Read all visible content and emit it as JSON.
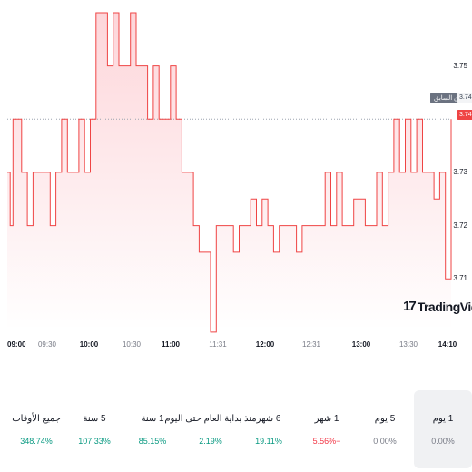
{
  "chart_data": {
    "type": "area",
    "x_ticks": [
      {
        "label": "09:00",
        "major": true
      },
      {
        "label": "09:30",
        "major": false
      },
      {
        "label": "10:00",
        "major": true
      },
      {
        "label": "10:30",
        "major": false
      },
      {
        "label": "11:00",
        "major": true
      },
      {
        "label": "11:31",
        "major": false
      },
      {
        "label": "12:00",
        "major": true
      },
      {
        "label": "12:31",
        "major": false
      },
      {
        "label": "13:00",
        "major": true
      },
      {
        "label": "13:30",
        "major": false
      },
      {
        "label": "14:10",
        "major": true
      }
    ],
    "y_ticks": [
      "3.75",
      "3.73",
      "3.72",
      "3.71"
    ],
    "ylim": [
      3.7,
      3.76
    ],
    "previous_close": 3.74,
    "previous_close_label": "الإغلاق السابق",
    "previous_close_value": "3.74",
    "last_price": "3.74",
    "x": [
      "09:00",
      "09:02",
      "09:04",
      "09:06",
      "09:10",
      "09:14",
      "09:18",
      "09:22",
      "09:26",
      "09:30",
      "09:34",
      "09:38",
      "09:42",
      "09:46",
      "09:50",
      "09:54",
      "09:58",
      "10:02",
      "10:06",
      "10:10",
      "10:14",
      "10:18",
      "10:22",
      "10:26",
      "10:30",
      "10:34",
      "10:38",
      "10:42",
      "10:46",
      "10:50",
      "10:54",
      "10:58",
      "11:02",
      "11:06",
      "11:10",
      "11:14",
      "11:18",
      "11:22",
      "11:26",
      "11:30",
      "11:34",
      "11:38",
      "11:42",
      "11:46",
      "11:50",
      "11:54",
      "11:58",
      "12:02",
      "12:06",
      "12:10",
      "12:14",
      "12:18",
      "12:22",
      "12:26",
      "12:30",
      "12:34",
      "12:38",
      "12:42",
      "12:46",
      "12:50",
      "12:54",
      "12:58",
      "13:02",
      "13:06",
      "13:10",
      "13:14",
      "13:18",
      "13:22",
      "13:26",
      "13:30",
      "13:34",
      "13:38",
      "13:42",
      "13:46",
      "13:50",
      "13:54",
      "13:58",
      "14:02",
      "14:06",
      "14:10"
    ],
    "values": [
      3.73,
      3.72,
      3.74,
      3.74,
      3.73,
      3.72,
      3.73,
      3.73,
      3.73,
      3.72,
      3.73,
      3.74,
      3.73,
      3.73,
      3.74,
      3.73,
      3.74,
      3.76,
      3.76,
      3.75,
      3.76,
      3.75,
      3.75,
      3.76,
      3.75,
      3.75,
      3.74,
      3.75,
      3.74,
      3.74,
      3.75,
      3.74,
      3.73,
      3.73,
      3.72,
      3.715,
      3.715,
      3.7,
      3.72,
      3.72,
      3.72,
      3.715,
      3.72,
      3.72,
      3.725,
      3.72,
      3.725,
      3.72,
      3.715,
      3.72,
      3.72,
      3.72,
      3.715,
      3.72,
      3.72,
      3.72,
      3.72,
      3.73,
      3.72,
      3.73,
      3.72,
      3.72,
      3.725,
      3.725,
      3.72,
      3.72,
      3.73,
      3.72,
      3.73,
      3.74,
      3.73,
      3.74,
      3.73,
      3.74,
      3.73,
      3.73,
      3.725,
      3.73,
      3.71,
      3.74
    ],
    "colors": {
      "line": "#ef4444",
      "fill_top": "#fdd6da",
      "fill_bottom": "#ffffff",
      "prev_close": "#9ca3af"
    }
  },
  "logo": {
    "mark": "17",
    "text": "TradingView"
  },
  "periods": [
    {
      "label": "1 يوم",
      "value": "0.00%",
      "tone": "neutral",
      "selected": true
    },
    {
      "label": "5 يوم",
      "value": "0.00%",
      "tone": "neutral",
      "selected": false
    },
    {
      "label": "1 شهر",
      "value": "−5.56%",
      "tone": "neg",
      "selected": false
    },
    {
      "label": "6 شهر",
      "value": "19.11%",
      "tone": "pos",
      "selected": false
    },
    {
      "label": "منذ بداية العام حتى اليوم",
      "value": "2.19%",
      "tone": "pos",
      "selected": false
    },
    {
      "label": "1 سنة",
      "value": "85.15%",
      "tone": "pos",
      "selected": false
    },
    {
      "label": "5 سنة",
      "value": "107.33%",
      "tone": "pos",
      "selected": false
    },
    {
      "label": "جميع الأوقات",
      "value": "348.74%",
      "tone": "pos",
      "selected": false
    }
  ]
}
